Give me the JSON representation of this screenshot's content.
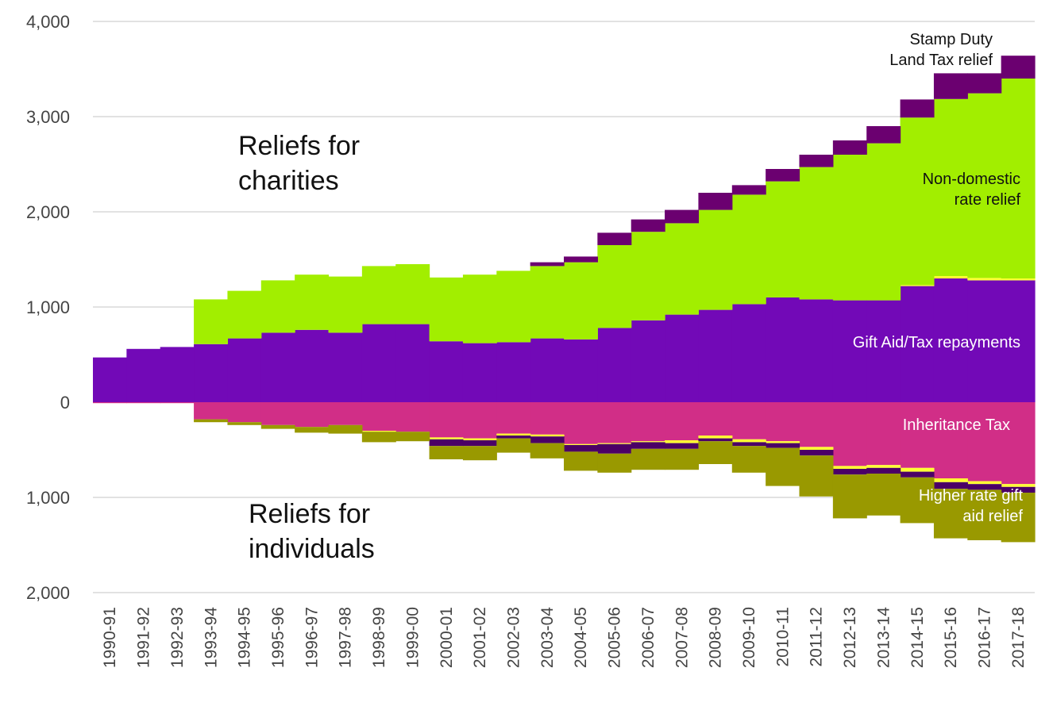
{
  "chart_data": {
    "type": "bar",
    "stacked": true,
    "categories": [
      "1990-91",
      "1991-92",
      "1992-93",
      "1993-94",
      "1994-95",
      "1995-96",
      "1996-97",
      "1997-98",
      "1998-99",
      "1999-00",
      "2000-01",
      "2001-02",
      "2002-03",
      "2003-04",
      "2004-05",
      "2005-06",
      "2006-07",
      "2007-08",
      "2008-09",
      "2009-10",
      "2010-11",
      "2011-12",
      "2012-13",
      "2013-14",
      "2014-15",
      "2015-16",
      "2016-17",
      "2017-18"
    ],
    "ylim": [
      -2000,
      4000
    ],
    "y_ticks": [
      {
        "value": 4000,
        "label": "4,000"
      },
      {
        "value": 3000,
        "label": "3,000"
      },
      {
        "value": 2000,
        "label": "2,000"
      },
      {
        "value": 1000,
        "label": "1,000"
      },
      {
        "value": 0,
        "label": "0"
      },
      {
        "value": -1000,
        "label": "1,000"
      },
      {
        "value": -2000,
        "label": "2,000"
      }
    ],
    "grid": true,
    "group_labels": {
      "charities": "Reliefs for\ncharities",
      "individuals": "Reliefs for\nindividuals"
    },
    "series_positive": [
      {
        "name": "Gift Aid/Tax repayments",
        "label": "Gift Aid/Tax repayments",
        "color": "#7209B7",
        "values": [
          470,
          560,
          580,
          610,
          670,
          730,
          760,
          730,
          820,
          820,
          640,
          620,
          630,
          670,
          660,
          780,
          860,
          920,
          970,
          1030,
          1100,
          1080,
          1070,
          1070,
          1220,
          1300,
          1280,
          1280
        ]
      },
      {
        "name": "Other (yellow)",
        "color": "#FFFF33",
        "values": [
          0,
          0,
          0,
          0,
          0,
          0,
          0,
          0,
          0,
          0,
          0,
          0,
          0,
          0,
          0,
          0,
          0,
          0,
          0,
          0,
          0,
          0,
          0,
          0,
          10,
          25,
          25,
          20
        ]
      },
      {
        "name": "Non-domestic rate relief",
        "label": "Non-domestic\nrate relief",
        "color": "#A2EE00",
        "values": [
          0,
          0,
          0,
          470,
          500,
          550,
          580,
          590,
          610,
          630,
          670,
          720,
          750,
          760,
          810,
          870,
          930,
          960,
          1050,
          1150,
          1220,
          1390,
          1530,
          1650,
          1760,
          1860,
          1940,
          2100
        ]
      },
      {
        "name": "Stamp Duty Land Tax relief",
        "label": "Stamp Duty\nLand Tax relief",
        "color": "#6B0070",
        "values": [
          0,
          0,
          0,
          0,
          0,
          0,
          0,
          0,
          0,
          0,
          0,
          0,
          0,
          40,
          60,
          130,
          130,
          140,
          180,
          100,
          130,
          130,
          150,
          180,
          190,
          270,
          210,
          240
        ]
      }
    ],
    "series_negative": [
      {
        "name": "Inheritance Tax",
        "label": "Inheritance Tax",
        "color": "#D12E87",
        "values": [
          10,
          10,
          10,
          180,
          210,
          240,
          260,
          240,
          300,
          310,
          370,
          380,
          330,
          340,
          440,
          430,
          410,
          400,
          350,
          390,
          410,
          470,
          670,
          660,
          690,
          800,
          830,
          860
        ]
      },
      {
        "name": "Other (yellow)",
        "color": "#FFFF33",
        "values": [
          0,
          0,
          0,
          0,
          0,
          0,
          0,
          0,
          10,
          0,
          20,
          20,
          20,
          20,
          10,
          10,
          10,
          30,
          30,
          30,
          20,
          30,
          30,
          30,
          40,
          40,
          30,
          30
        ]
      },
      {
        "name": "Other (purple)",
        "color": "#4B0066",
        "values": [
          0,
          0,
          0,
          0,
          0,
          0,
          0,
          0,
          0,
          0,
          70,
          60,
          30,
          70,
          70,
          100,
          70,
          60,
          30,
          40,
          50,
          60,
          60,
          60,
          60,
          70,
          60,
          60
        ]
      },
      {
        "name": "Higher rate gift aid relief",
        "label": "Higher rate gift\naid relief",
        "color": "#999900",
        "values": [
          0,
          0,
          0,
          30,
          30,
          40,
          60,
          90,
          110,
          100,
          140,
          150,
          150,
          160,
          200,
          200,
          220,
          220,
          240,
          280,
          400,
          430,
          460,
          440,
          480,
          520,
          530,
          520
        ]
      }
    ]
  }
}
